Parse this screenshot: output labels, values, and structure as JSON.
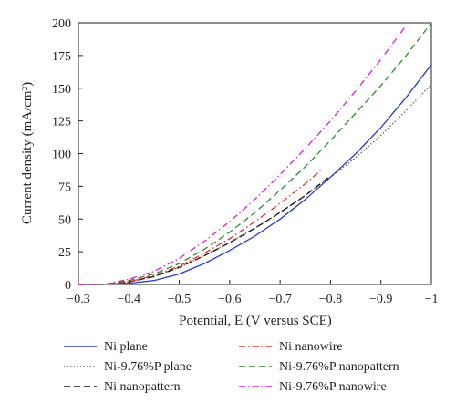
{
  "chart_data": {
    "type": "line",
    "title": "",
    "xlabel": "Potential, E (V versus SCE)",
    "ylabel": "Current density (mA/cm²)",
    "xlim": [
      -0.3,
      -1.0
    ],
    "ylim": [
      0,
      200
    ],
    "xticks": [
      -0.3,
      -0.4,
      -0.5,
      -0.6,
      -0.7,
      -0.8,
      -0.9,
      -1.0
    ],
    "xtick_labels": [
      "−0.3",
      "−0.4",
      "−0.5",
      "−0.6",
      "−0.7",
      "−0.8",
      "−0.9",
      "−1"
    ],
    "yticks": [
      0,
      25,
      50,
      75,
      100,
      125,
      150,
      175,
      200
    ],
    "grid": false,
    "legend_position": "bottom",
    "series": [
      {
        "name": "Ni plane",
        "color": "#2a3bc8",
        "dash": "solid",
        "x": [
          -0.3,
          -0.35,
          -0.4,
          -0.45,
          -0.5,
          -0.55,
          -0.6,
          -0.65,
          -0.7,
          -0.75,
          -0.8,
          -0.85,
          -0.9,
          -0.95,
          -1.0
        ],
        "y": [
          0,
          0,
          1,
          3,
          8,
          16,
          26,
          37,
          50,
          65,
          82,
          100,
          120,
          143,
          168
        ]
      },
      {
        "name": "Ni-9.76%P plane",
        "color": "#444444",
        "dash": "dot",
        "x": [
          -0.3,
          -0.35,
          -0.4,
          -0.45,
          -0.5,
          -0.55,
          -0.6,
          -0.65,
          -0.7,
          -0.75,
          -0.8,
          -0.85,
          -0.9,
          -0.95,
          -1.0
        ],
        "y": [
          0,
          0,
          2,
          6,
          13,
          22,
          32,
          43,
          55,
          68,
          82,
          97,
          114,
          133,
          153
        ]
      },
      {
        "name": "Ni nanopattern",
        "color": "#111111",
        "dash": "dash",
        "x": [
          -0.3,
          -0.35,
          -0.4,
          -0.45,
          -0.5,
          -0.55,
          -0.6,
          -0.65,
          -0.7,
          -0.75,
          -0.8
        ],
        "y": [
          0,
          0,
          2,
          6,
          13,
          22,
          32,
          43,
          55,
          68,
          83
        ]
      },
      {
        "name": "Ni nanowire",
        "color": "#e0302a",
        "dash": "dashdot",
        "x": [
          -0.3,
          -0.35,
          -0.4,
          -0.45,
          -0.5,
          -0.55,
          -0.6,
          -0.65,
          -0.7,
          -0.75,
          -0.78
        ],
        "y": [
          0,
          0,
          2,
          7,
          14,
          24,
          35,
          48,
          62,
          77,
          87
        ]
      },
      {
        "name": "Ni-9.76%P nanopattern",
        "color": "#2e8b2e",
        "dash": "dash",
        "x": [
          -0.3,
          -0.35,
          -0.4,
          -0.45,
          -0.5,
          -0.55,
          -0.6,
          -0.65,
          -0.7,
          -0.75,
          -0.8,
          -0.85,
          -0.9,
          -0.95,
          -1.0
        ],
        "y": [
          0,
          0,
          3,
          8,
          16,
          27,
          40,
          55,
          72,
          90,
          110,
          131,
          152,
          175,
          200
        ]
      },
      {
        "name": "Ni-9.76%P nanowire",
        "color": "#d61fd6",
        "dash": "dashdot",
        "x": [
          -0.3,
          -0.35,
          -0.4,
          -0.45,
          -0.5,
          -0.55,
          -0.6,
          -0.65,
          -0.7,
          -0.75,
          -0.8,
          -0.85,
          -0.9,
          -0.95
        ],
        "y": [
          0,
          0,
          4,
          10,
          20,
          33,
          48,
          65,
          84,
          104,
          125,
          148,
          172,
          198
        ]
      }
    ]
  }
}
